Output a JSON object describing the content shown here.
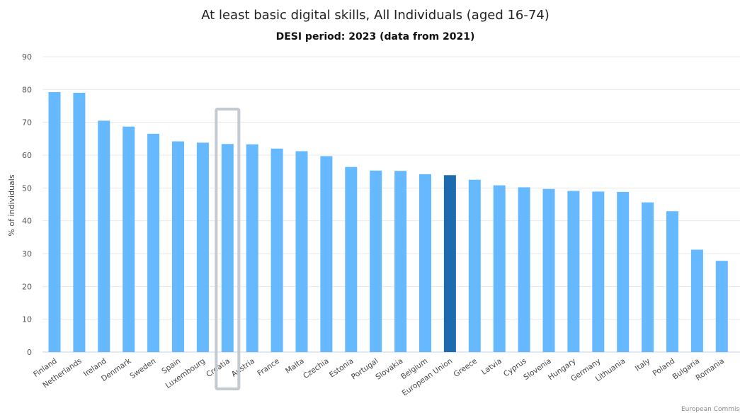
{
  "chart_data": {
    "type": "bar",
    "title": "At least basic digital skills, All Individuals (aged 16-74)",
    "subtitle": "DESI period: 2023 (data from 2021)",
    "xlabel": "",
    "ylabel": "% of individuals",
    "ylim": [
      0,
      90
    ],
    "yticks": [
      0,
      10,
      20,
      30,
      40,
      50,
      60,
      70,
      80,
      90
    ],
    "grid": true,
    "categories": [
      "Finland",
      "Netherlands",
      "Ireland",
      "Denmark",
      "Sweden",
      "Spain",
      "Luxembourg",
      "Croatia",
      "Austria",
      "France",
      "Malta",
      "Czechia",
      "Estonia",
      "Portugal",
      "Slovakia",
      "Belgium",
      "European Union",
      "Greece",
      "Latvia",
      "Cyprus",
      "Slovenia",
      "Hungary",
      "Germany",
      "Lithuania",
      "Italy",
      "Poland",
      "Bulgaria",
      "Romania"
    ],
    "values": [
      79.2,
      79.0,
      70.5,
      68.7,
      66.5,
      64.2,
      63.8,
      63.4,
      63.3,
      62.0,
      61.2,
      59.7,
      56.4,
      55.3,
      55.2,
      54.2,
      53.9,
      52.5,
      50.8,
      50.2,
      49.7,
      49.1,
      48.9,
      48.8,
      45.6,
      42.9,
      31.2,
      27.8
    ],
    "bar_color": "#66b8ff",
    "highlight_color": "#1c6bb0",
    "highlight_category": "European Union",
    "selected_category": "Croatia",
    "selection_color": "#c3cad2"
  },
  "credit": "European Commiss"
}
